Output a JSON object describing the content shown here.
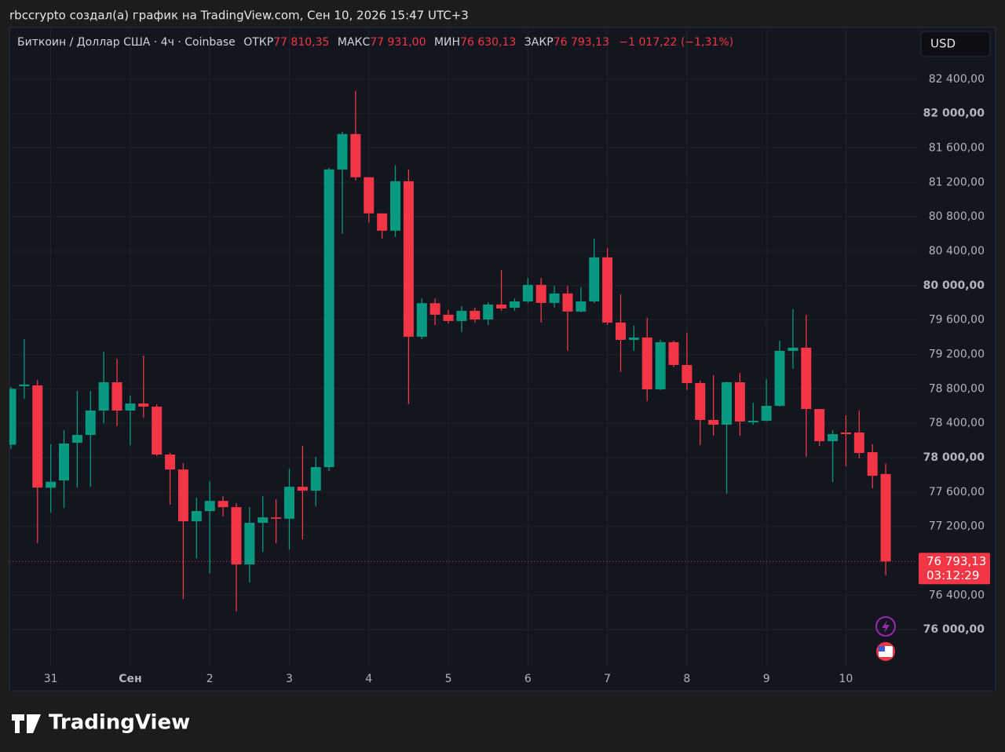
{
  "header": {
    "attribution": "rbccrypto создал(а) график на TradingView.com, Сен 10, 2026 15:47 UTC+3",
    "logo": "TradingView"
  },
  "chart_data": {
    "type": "candlestick",
    "symbol": "Биткоин / Доллар США · 4ч · Coinbase",
    "ohlc_legend": [
      {
        "label": "ОТКР",
        "value": "77 810,35"
      },
      {
        "label": "МАКС",
        "value": "77 931,00"
      },
      {
        "label": "МИН",
        "value": "76 630,13"
      },
      {
        "label": "ЗАКР",
        "value": "76 793,13"
      }
    ],
    "change": "−1 017,22 (−1,31%)",
    "currency": "USD",
    "categories": [
      null,
      null,
      null,
      "31",
      null,
      null,
      null,
      null,
      null,
      "Сен",
      null,
      null,
      null,
      null,
      null,
      "2",
      null,
      null,
      null,
      null,
      null,
      "3",
      null,
      null,
      null,
      null,
      null,
      "4",
      null,
      null,
      null,
      null,
      null,
      "5",
      null,
      null,
      null,
      null,
      null,
      "6",
      null,
      null,
      null,
      null,
      null,
      "7",
      null,
      null,
      null,
      null,
      null,
      "8",
      null,
      null,
      null,
      null,
      null,
      "9",
      null,
      null,
      null,
      null,
      null,
      "10",
      null,
      null,
      null
    ],
    "open": [
      78150,
      78830,
      78840,
      77650,
      77735,
      78173,
      78264,
      78547,
      78876,
      78547,
      78629,
      78593,
      78036,
      77862,
      77260,
      77379,
      77497,
      77424,
      76758,
      77242,
      77306,
      77290,
      77661,
      77616,
      77890,
      81350,
      81761,
      81259,
      80839,
      80638,
      81213,
      79405,
      79795,
      79661,
      79588,
      79707,
      79606,
      79780,
      79743,
      79816,
      80008,
      79798,
      79908,
      79698,
      79816,
      80328,
      79570,
      79369,
      79396,
      78794,
      79342,
      79077,
      78867,
      78438,
      78383,
      78876,
      78410,
      78429,
      78602,
      79241,
      79278,
      78565,
      78191,
      78292,
      78292,
      78063,
      77810.35
    ],
    "high": [
      78820,
      79380,
      78903,
      78155,
      78319,
      78775,
      78775,
      79232,
      79150,
      78721,
      79186,
      78620,
      78055,
      77935,
      77534,
      77725,
      77552,
      77470,
      77424,
      77552,
      77516,
      77871,
      78136,
      78009,
      81368,
      81788,
      82263,
      81259,
      80839,
      81396,
      81350,
      79850,
      79850,
      79716,
      79761,
      79743,
      79807,
      80181,
      79850,
      80090,
      80090,
      79999,
      79999,
      79981,
      80547,
      80437,
      79899,
      79533,
      79624,
      79369,
      79360,
      79451,
      78894,
      78958,
      78885,
      78985,
      78638,
      78912,
      79360,
      79725,
      79661,
      78565,
      78319,
      78492,
      78547,
      78155,
      77931
    ],
    "low": [
      78100,
      78684,
      77004,
      77360,
      77415,
      77652,
      77661,
      78401,
      78365,
      78145,
      78465,
      78020,
      77452,
      76356,
      76831,
      76657,
      77315,
      76210,
      76548,
      76904,
      77004,
      76932,
      77050,
      77433,
      77845,
      80601,
      81222,
      80734,
      80547,
      80565,
      78620,
      79378,
      79542,
      79561,
      79460,
      79570,
      79542,
      79707,
      79707,
      79798,
      79570,
      79743,
      79241,
      79689,
      79798,
      79542,
      78995,
      79241,
      78657,
      78785,
      79050,
      78785,
      78145,
      78255,
      77579,
      78255,
      78383,
      78420,
      78593,
      79032,
      78008,
      78136,
      77716,
      77899,
      77990,
      77643,
      76630.13
    ],
    "close": [
      78800,
      78850,
      77652,
      77720,
      78164,
      78264,
      78547,
      78876,
      78547,
      78629,
      78593,
      78036,
      77862,
      77260,
      77379,
      77497,
      77424,
      76758,
      77242,
      77306,
      77290,
      77661,
      77616,
      77890,
      81350,
      81761,
      81259,
      80839,
      80638,
      81213,
      79405,
      79795,
      79661,
      79588,
      79707,
      79606,
      79780,
      79734,
      79816,
      80008,
      79798,
      79908,
      79698,
      79816,
      80328,
      79570,
      79369,
      79396,
      78794,
      79342,
      79077,
      78867,
      78438,
      78383,
      78876,
      78420,
      78429,
      78602,
      79241,
      79278,
      78565,
      78191,
      78273,
      78273,
      78054,
      77789,
      76793.13
    ],
    "up_color": "#089981",
    "down_color": "#f23645",
    "ylim": [
      75290,
      83000
    ],
    "yticks": [
      {
        "value": 82400,
        "label": "82 400,00"
      },
      {
        "value": 82000,
        "label": "82 000,00"
      },
      {
        "value": 81600,
        "label": "81 600,00"
      },
      {
        "value": 81200,
        "label": "81 200,00"
      },
      {
        "value": 80800,
        "label": "80 800,00"
      },
      {
        "value": 80400,
        "label": "80 400,00"
      },
      {
        "value": 80000,
        "label": "80 000,00"
      },
      {
        "value": 79600,
        "label": "79 600,00"
      },
      {
        "value": 79200,
        "label": "79 200,00"
      },
      {
        "value": 78800,
        "label": "78 800,00"
      },
      {
        "value": 78400,
        "label": "78 400,00"
      },
      {
        "value": 78000,
        "label": "78 000,00"
      },
      {
        "value": 77600,
        "label": "77 600,00"
      },
      {
        "value": 77200,
        "label": "77 200,00"
      },
      {
        "value": 76400,
        "label": "76 400,00"
      },
      {
        "value": 76000,
        "label": "76 000,00"
      }
    ],
    "grid": true,
    "last_price": {
      "value": 76793.13,
      "label": "76 793,13"
    },
    "countdown": "03:12:29"
  }
}
